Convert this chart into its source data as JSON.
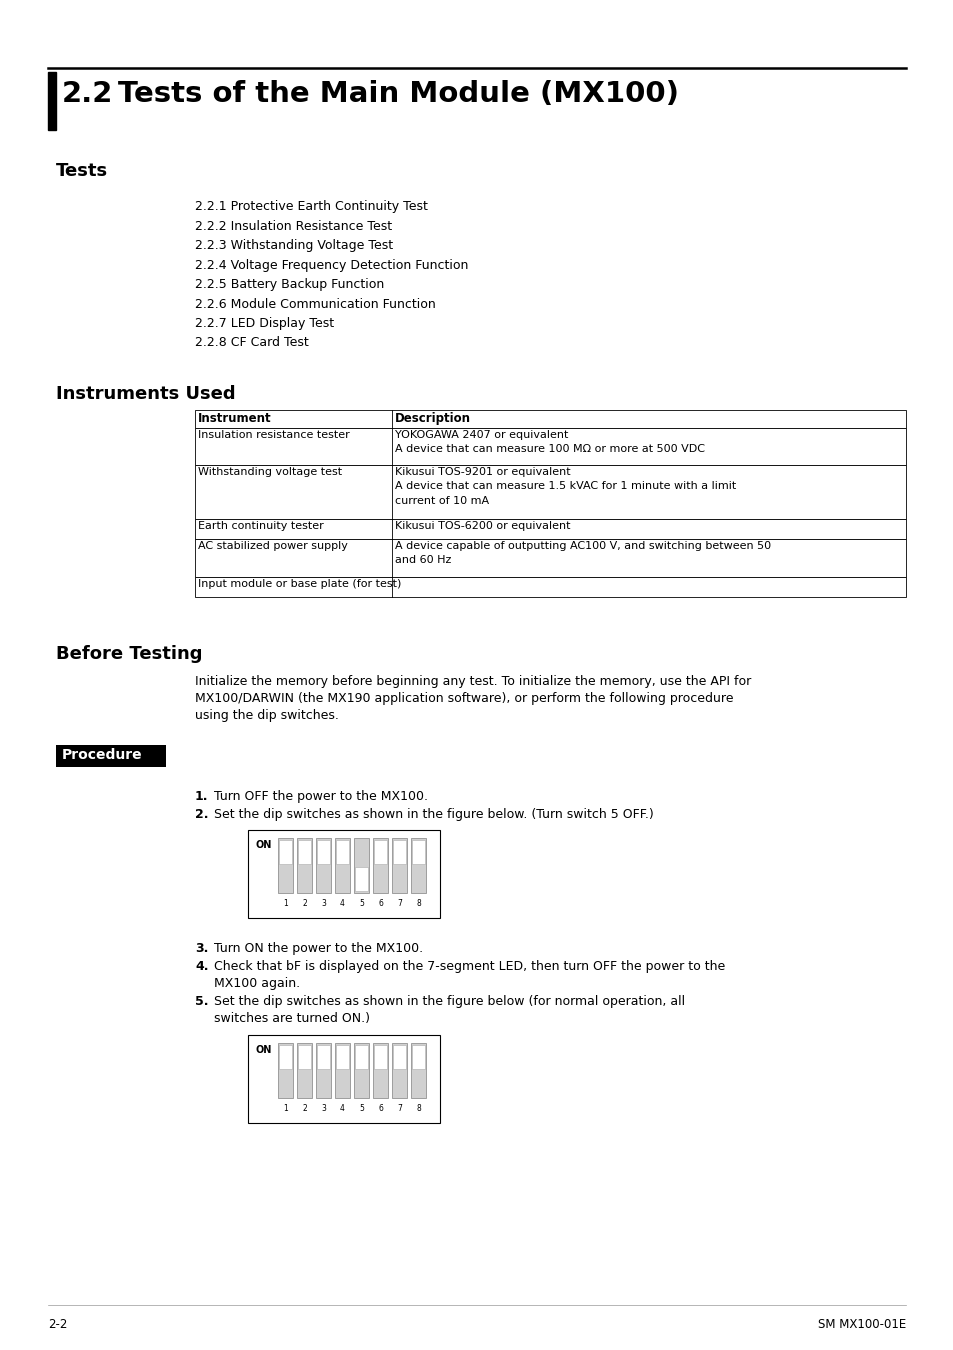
{
  "title_num": "2.2",
  "title_text": "Tests of the Main Module (MX100)",
  "section_tests": "Tests",
  "tests_list": [
    "2.2.1 Protective Earth Continuity Test",
    "2.2.2 Insulation Resistance Test",
    "2.2.3 Withstanding Voltage Test",
    "2.2.4 Voltage Frequency Detection Function",
    "2.2.5 Battery Backup Function",
    "2.2.6 Module Communication Function",
    "2.2.7 LED Display Test",
    "2.2.8 CF Card Test"
  ],
  "section_instruments": "Instruments Used",
  "table_headers": [
    "Instrument",
    "Description"
  ],
  "table_rows": [
    [
      "Insulation resistance tester",
      "YOKOGAWA 2407 or equivalent\nA device that can measure 100 MΩ or more at 500 VDC"
    ],
    [
      "Withstanding voltage test",
      "Kikusui TOS-9201 or equivalent\nA device that can measure 1.5 kVAC for 1 minute with a limit\ncurrent of 10 mA"
    ],
    [
      "Earth continuity tester",
      "Kikusui TOS-6200 or equivalent"
    ],
    [
      "AC stabilized power supply",
      "A device capable of outputting AC100 V, and switching between 50\nand 60 Hz"
    ],
    [
      "Input module or base plate (for test)",
      ""
    ]
  ],
  "section_before": "Before Testing",
  "before_text1": "Initialize the memory before beginning any test. To initialize the memory, use the API for",
  "before_text2": "MX100/DARWIN (the MX190 application software), or perform the following procedure",
  "before_text3": "using the dip switches.",
  "procedure_label": "Procedure",
  "step1": "Turn OFF the power to the MX100.",
  "step2": "Set the dip switches as shown in the figure below. (Turn switch 5 OFF.)",
  "step3": "Turn ON the power to the MX100.",
  "step4_1": "Check that bF is displayed on the 7-segment LED, then turn OFF the power to the",
  "step4_2": "MX100 again.",
  "step5_1": "Set the dip switches as shown in the figure below (for normal operation, all",
  "step5_2": "switches are turned ON.)",
  "footer_left": "2-2",
  "footer_right": "SM MX100-01E",
  "dip_switch_1": [
    true,
    true,
    true,
    true,
    false,
    true,
    true,
    true
  ],
  "dip_switch_2": [
    true,
    true,
    true,
    true,
    true,
    true,
    true,
    true
  ]
}
